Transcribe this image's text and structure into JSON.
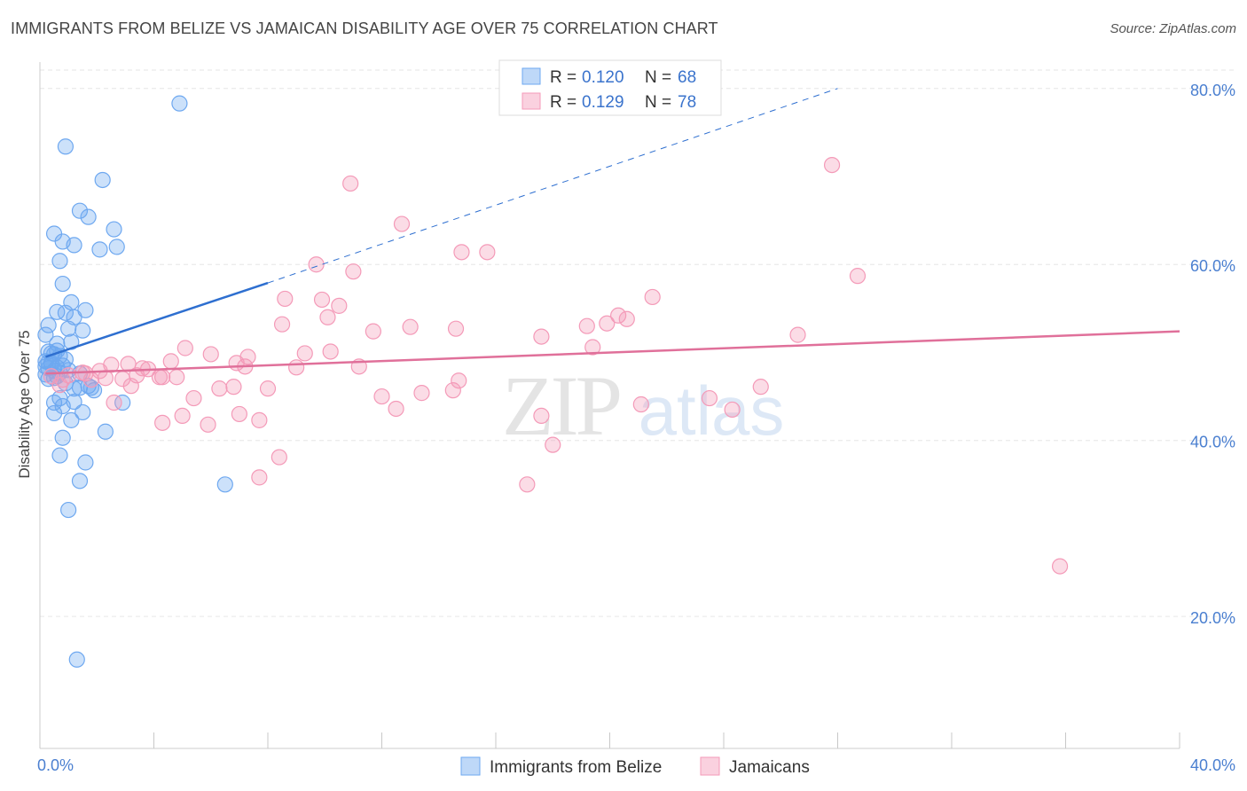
{
  "title": "IMMIGRANTS FROM BELIZE VS JAMAICAN DISABILITY AGE OVER 75 CORRELATION CHART",
  "source": "Source: ZipAtlas.com",
  "watermark": {
    "zip": "ZIP",
    "atlas": "atlas"
  },
  "chart_data": {
    "type": "scatter",
    "xlabel": "",
    "ylabel": "Disability Age Over 75",
    "xlim": [
      0,
      40
    ],
    "ylim": [
      5,
      83
    ],
    "x_tick_labels": [
      {
        "value": 0,
        "label": "0.0%"
      },
      {
        "value": 40,
        "label": "40.0%"
      }
    ],
    "y_tick_labels": [
      {
        "value": 20,
        "label": "20.0%"
      },
      {
        "value": 40,
        "label": "40.0%"
      },
      {
        "value": 60,
        "label": "60.0%"
      },
      {
        "value": 80,
        "label": "80.0%"
      }
    ],
    "grid": true,
    "legend_position": "top-center",
    "legend": [
      {
        "r_label": "R = ",
        "r_value": "0.120",
        "n_label": "N = ",
        "n_value": "68",
        "color": "#6ea8f0"
      },
      {
        "r_label": "R = ",
        "r_value": "0.129",
        "n_label": "N = ",
        "n_value": "78",
        "color": "#f49ab8"
      }
    ],
    "bottom_legend": [
      "Immigrants from Belize",
      "Jamaicans"
    ],
    "series": [
      {
        "name": "Immigrants from Belize",
        "color": "#6ea8f0",
        "trend_color": "#2e6fd0",
        "trend": {
          "x0": 0.2,
          "y0": 49.5,
          "x1": 8.0,
          "y1": 57.9,
          "dash_x1": 28.0,
          "dash_y1": 80.0
        },
        "points": [
          [
            4.9,
            78.3
          ],
          [
            0.9,
            73.4
          ],
          [
            2.2,
            69.6
          ],
          [
            1.4,
            66.1
          ],
          [
            1.7,
            65.4
          ],
          [
            2.6,
            64.0
          ],
          [
            0.5,
            63.5
          ],
          [
            0.8,
            62.6
          ],
          [
            1.2,
            62.2
          ],
          [
            2.1,
            61.7
          ],
          [
            2.7,
            62.0
          ],
          [
            0.7,
            60.4
          ],
          [
            0.8,
            57.8
          ],
          [
            1.1,
            55.7
          ],
          [
            0.6,
            54.6
          ],
          [
            1.6,
            54.8
          ],
          [
            0.9,
            54.5
          ],
          [
            1.2,
            54.0
          ],
          [
            0.3,
            53.1
          ],
          [
            1.0,
            52.7
          ],
          [
            1.5,
            52.5
          ],
          [
            0.2,
            52.0
          ],
          [
            0.6,
            51.0
          ],
          [
            1.1,
            51.2
          ],
          [
            0.3,
            50.1
          ],
          [
            0.5,
            49.8
          ],
          [
            0.7,
            49.6
          ],
          [
            0.2,
            49.0
          ],
          [
            0.4,
            48.8
          ],
          [
            0.8,
            48.5
          ],
          [
            0.3,
            48.2
          ],
          [
            0.5,
            47.9
          ],
          [
            1.0,
            48.0
          ],
          [
            0.2,
            47.5
          ],
          [
            0.6,
            47.3
          ],
          [
            1.4,
            47.6
          ],
          [
            0.3,
            47.0
          ],
          [
            0.9,
            46.5
          ],
          [
            1.7,
            46.2
          ],
          [
            1.4,
            46.0
          ],
          [
            1.9,
            45.7
          ],
          [
            0.7,
            44.8
          ],
          [
            0.5,
            44.3
          ],
          [
            0.8,
            43.9
          ],
          [
            1.2,
            44.4
          ],
          [
            2.9,
            44.3
          ],
          [
            0.5,
            43.1
          ],
          [
            1.1,
            42.3
          ],
          [
            2.3,
            41.0
          ],
          [
            0.8,
            40.3
          ],
          [
            0.7,
            38.3
          ],
          [
            1.6,
            37.5
          ],
          [
            1.4,
            35.4
          ],
          [
            6.5,
            35.0
          ],
          [
            1.0,
            32.1
          ],
          [
            1.3,
            15.1
          ],
          [
            0.4,
            48.6
          ],
          [
            0.6,
            48.3
          ],
          [
            0.9,
            49.2
          ],
          [
            0.3,
            48.9
          ],
          [
            0.7,
            47.7
          ],
          [
            1.2,
            45.9
          ],
          [
            0.4,
            49.9
          ],
          [
            0.6,
            50.2
          ],
          [
            0.2,
            48.4
          ],
          [
            0.5,
            47.1
          ],
          [
            1.8,
            46.0
          ],
          [
            1.5,
            43.2
          ]
        ]
      },
      {
        "name": "Jamaicans",
        "color": "#f49ab8",
        "trend_color": "#e0709a",
        "trend": {
          "x0": 0.2,
          "y0": 47.6,
          "x1": 40.0,
          "y1": 52.4
        },
        "points": [
          [
            27.8,
            71.3
          ],
          [
            10.9,
            69.2
          ],
          [
            12.7,
            64.6
          ],
          [
            14.8,
            61.4
          ],
          [
            15.7,
            61.4
          ],
          [
            9.7,
            60.0
          ],
          [
            11.0,
            59.2
          ],
          [
            28.7,
            58.7
          ],
          [
            8.6,
            56.1
          ],
          [
            9.9,
            56.0
          ],
          [
            21.5,
            56.3
          ],
          [
            10.5,
            55.3
          ],
          [
            10.1,
            54.0
          ],
          [
            20.3,
            54.2
          ],
          [
            20.6,
            53.8
          ],
          [
            19.9,
            53.3
          ],
          [
            8.5,
            53.2
          ],
          [
            13.0,
            52.9
          ],
          [
            14.6,
            52.7
          ],
          [
            19.2,
            53.0
          ],
          [
            11.7,
            52.4
          ],
          [
            17.6,
            51.8
          ],
          [
            26.6,
            52.0
          ],
          [
            5.1,
            50.5
          ],
          [
            19.4,
            50.6
          ],
          [
            10.2,
            50.1
          ],
          [
            9.3,
            49.9
          ],
          [
            6.0,
            49.8
          ],
          [
            4.6,
            49.0
          ],
          [
            7.3,
            49.5
          ],
          [
            6.9,
            48.8
          ],
          [
            3.8,
            48.1
          ],
          [
            2.5,
            48.6
          ],
          [
            3.1,
            48.7
          ],
          [
            7.2,
            48.4
          ],
          [
            9.0,
            48.3
          ],
          [
            11.2,
            48.4
          ],
          [
            4.3,
            47.2
          ],
          [
            2.1,
            47.9
          ],
          [
            1.0,
            47.4
          ],
          [
            1.6,
            47.6
          ],
          [
            0.4,
            47.3
          ],
          [
            4.8,
            47.2
          ],
          [
            2.9,
            47.0
          ],
          [
            3.4,
            47.4
          ],
          [
            4.2,
            47.2
          ],
          [
            1.8,
            46.9
          ],
          [
            0.7,
            46.3
          ],
          [
            6.8,
            46.1
          ],
          [
            14.7,
            46.8
          ],
          [
            6.3,
            45.9
          ],
          [
            8.0,
            45.9
          ],
          [
            3.2,
            46.2
          ],
          [
            14.5,
            45.7
          ],
          [
            13.4,
            45.4
          ],
          [
            12.0,
            45.0
          ],
          [
            5.4,
            44.8
          ],
          [
            23.5,
            44.8
          ],
          [
            25.3,
            46.1
          ],
          [
            2.6,
            44.3
          ],
          [
            12.5,
            43.6
          ],
          [
            21.1,
            44.1
          ],
          [
            24.3,
            43.5
          ],
          [
            7.0,
            43.0
          ],
          [
            5.0,
            42.8
          ],
          [
            17.6,
            42.8
          ],
          [
            4.3,
            42.0
          ],
          [
            5.9,
            41.8
          ],
          [
            7.7,
            42.3
          ],
          [
            18.0,
            39.5
          ],
          [
            8.4,
            38.1
          ],
          [
            7.7,
            35.8
          ],
          [
            17.1,
            35.0
          ],
          [
            35.8,
            25.7
          ],
          [
            1.5,
            47.7
          ],
          [
            2.3,
            47.1
          ],
          [
            3.6,
            48.2
          ],
          [
            0.8,
            46.9
          ]
        ]
      }
    ]
  }
}
